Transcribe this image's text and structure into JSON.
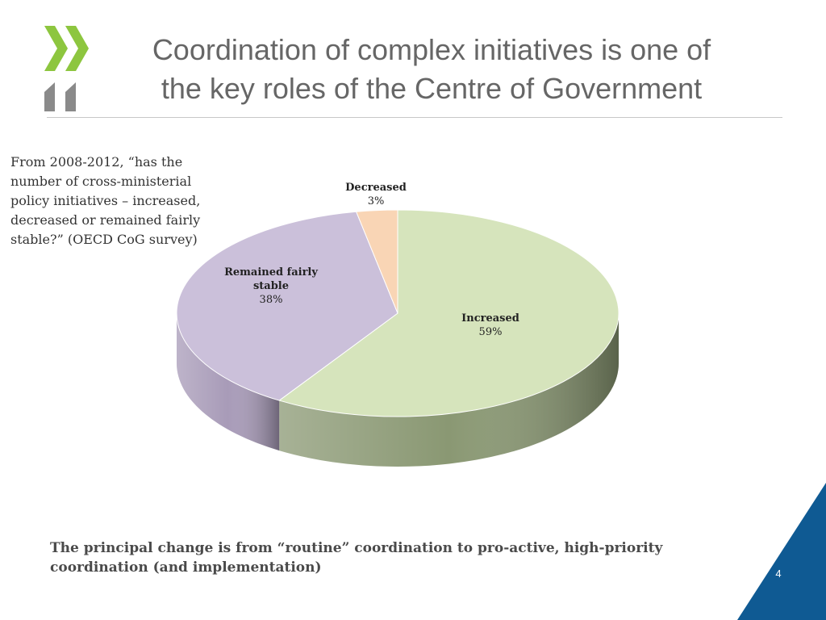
{
  "slide": {
    "title_line1": "Coordination of complex initiatives is one of",
    "title_line2": "the key roles of the Centre of Government",
    "question": "From 2008-2012, “has the number of cross-ministerial policy initiatives – increased, decreased or remained fairly stable?” (OECD CoG survey)",
    "footer": "The principal change is from “routine” coordination to pro-active, high-priority coordination (and implementation)",
    "page_number": "4"
  },
  "colors": {
    "logo_green": "#8dc63f",
    "logo_gray": "#8a8a8a",
    "corner_blue": "#0f5a93",
    "title_gray": "#666666"
  },
  "chart_data": {
    "type": "pie",
    "style": "3d",
    "title": "",
    "slices": [
      {
        "label_line1": "Increased",
        "label_line2": "",
        "percent_label": "59%",
        "value": 59,
        "color": "#d6e4bc",
        "side_color": "#8a9873"
      },
      {
        "label_line1": "Remained fairly",
        "label_line2": "stable",
        "percent_label": "38%",
        "value": 38,
        "color": "#cbc0da",
        "side_color": "#a89bb8"
      },
      {
        "label_line1": "Decreased",
        "label_line2": "",
        "percent_label": "3%",
        "value": 3,
        "color": "#f9d5b5",
        "side_color": "#c9a688"
      }
    ]
  }
}
